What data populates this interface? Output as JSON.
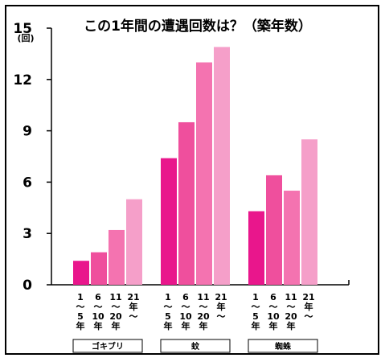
{
  "chart_data": {
    "type": "bar",
    "title": "この1年間の遭遇回数は？（築年数）",
    "ylabel": "(回)",
    "ylim": [
      0,
      15
    ],
    "yticks": [
      "0",
      "3",
      "6",
      "9",
      "12",
      "15"
    ],
    "grid": false,
    "groups": [
      "ゴキブリ",
      "蚊",
      "蜘蛛"
    ],
    "series": [
      {
        "name": "1〜5年",
        "color": "#e9168c",
        "tick_lines": [
          "1",
          "〜",
          "5",
          "年"
        ],
        "values": [
          1.4,
          7.4,
          4.3
        ]
      },
      {
        "name": "6〜10年",
        "color": "#ef4f9d",
        "tick_lines": [
          "6",
          "〜",
          "10",
          "年"
        ],
        "values": [
          1.9,
          9.5,
          6.4
        ]
      },
      {
        "name": "11〜20年",
        "color": "#f473b0",
        "tick_lines": [
          "11",
          "〜",
          "20",
          "年"
        ],
        "values": [
          3.2,
          13.0,
          5.5
        ]
      },
      {
        "name": "21年〜",
        "color": "#f59fc9",
        "tick_lines": [
          "21",
          "年",
          "〜"
        ],
        "values": [
          5.0,
          13.9,
          8.5
        ]
      }
    ]
  }
}
